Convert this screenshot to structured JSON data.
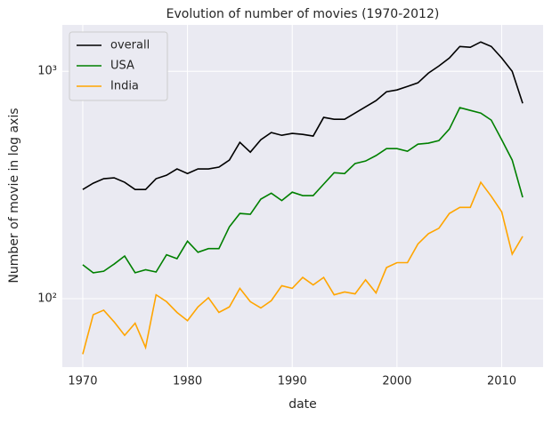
{
  "chart_data": {
    "type": "line",
    "title": "Evolution of number of movies (1970-2012)",
    "xlabel": "date",
    "ylabel": "Number of movie in log axis",
    "x": [
      1970,
      1971,
      1972,
      1973,
      1974,
      1975,
      1976,
      1977,
      1978,
      1979,
      1980,
      1981,
      1982,
      1983,
      1984,
      1985,
      1986,
      1987,
      1988,
      1989,
      1990,
      1991,
      1992,
      1993,
      1994,
      1995,
      1996,
      1997,
      1998,
      1999,
      2000,
      2001,
      2002,
      2003,
      2004,
      2005,
      2006,
      2007,
      2008,
      2009,
      2010,
      2011,
      2012
    ],
    "series": [
      {
        "name": "overall",
        "color": "#000000",
        "values": [
          302,
          322,
          337,
          340,
          325,
          302,
          302,
          337,
          349,
          372,
          355,
          372,
          372,
          379,
          407,
          487,
          441,
          500,
          538,
          523,
          533,
          528,
          519,
          627,
          615,
          615,
          655,
          698,
          743,
          813,
          828,
          858,
          890,
          982,
          1055,
          1144,
          1286,
          1275,
          1346,
          1286,
          1144,
          1000,
          723
        ]
      },
      {
        "name": "USA",
        "color": "#008000",
        "values": [
          141,
          130,
          132,
          142,
          154,
          130,
          134,
          131,
          156,
          150,
          179,
          160,
          166,
          166,
          207,
          237,
          235,
          274,
          291,
          270,
          294,
          284,
          284,
          319,
          358,
          355,
          393,
          403,
          426,
          457,
          457,
          445,
          478,
          483,
          496,
          557,
          692,
          673,
          655,
          610,
          500,
          407,
          279
        ]
      },
      {
        "name": "India",
        "color": "#ffa500",
        "values": [
          57,
          85,
          89,
          79,
          69,
          78,
          61,
          104,
          97,
          87,
          80,
          92,
          101,
          87,
          92,
          111,
          97,
          91,
          98,
          114,
          111,
          124,
          115,
          124,
          104,
          107,
          105,
          121,
          106,
          137,
          144,
          144,
          174,
          193,
          204,
          237,
          252,
          252,
          325,
          282,
          241,
          157,
          188
        ]
      }
    ],
    "xlim": [
      1968.05,
      2013.95
    ],
    "xticks": [
      1970,
      1980,
      1990,
      2000,
      2010
    ],
    "ylim": [
      50,
      1600
    ],
    "yticks": [
      {
        "value": 100,
        "label": "10²"
      },
      {
        "value": 1000,
        "label": "10³"
      }
    ],
    "log_y": true,
    "grid": true,
    "legend": "upper left"
  }
}
